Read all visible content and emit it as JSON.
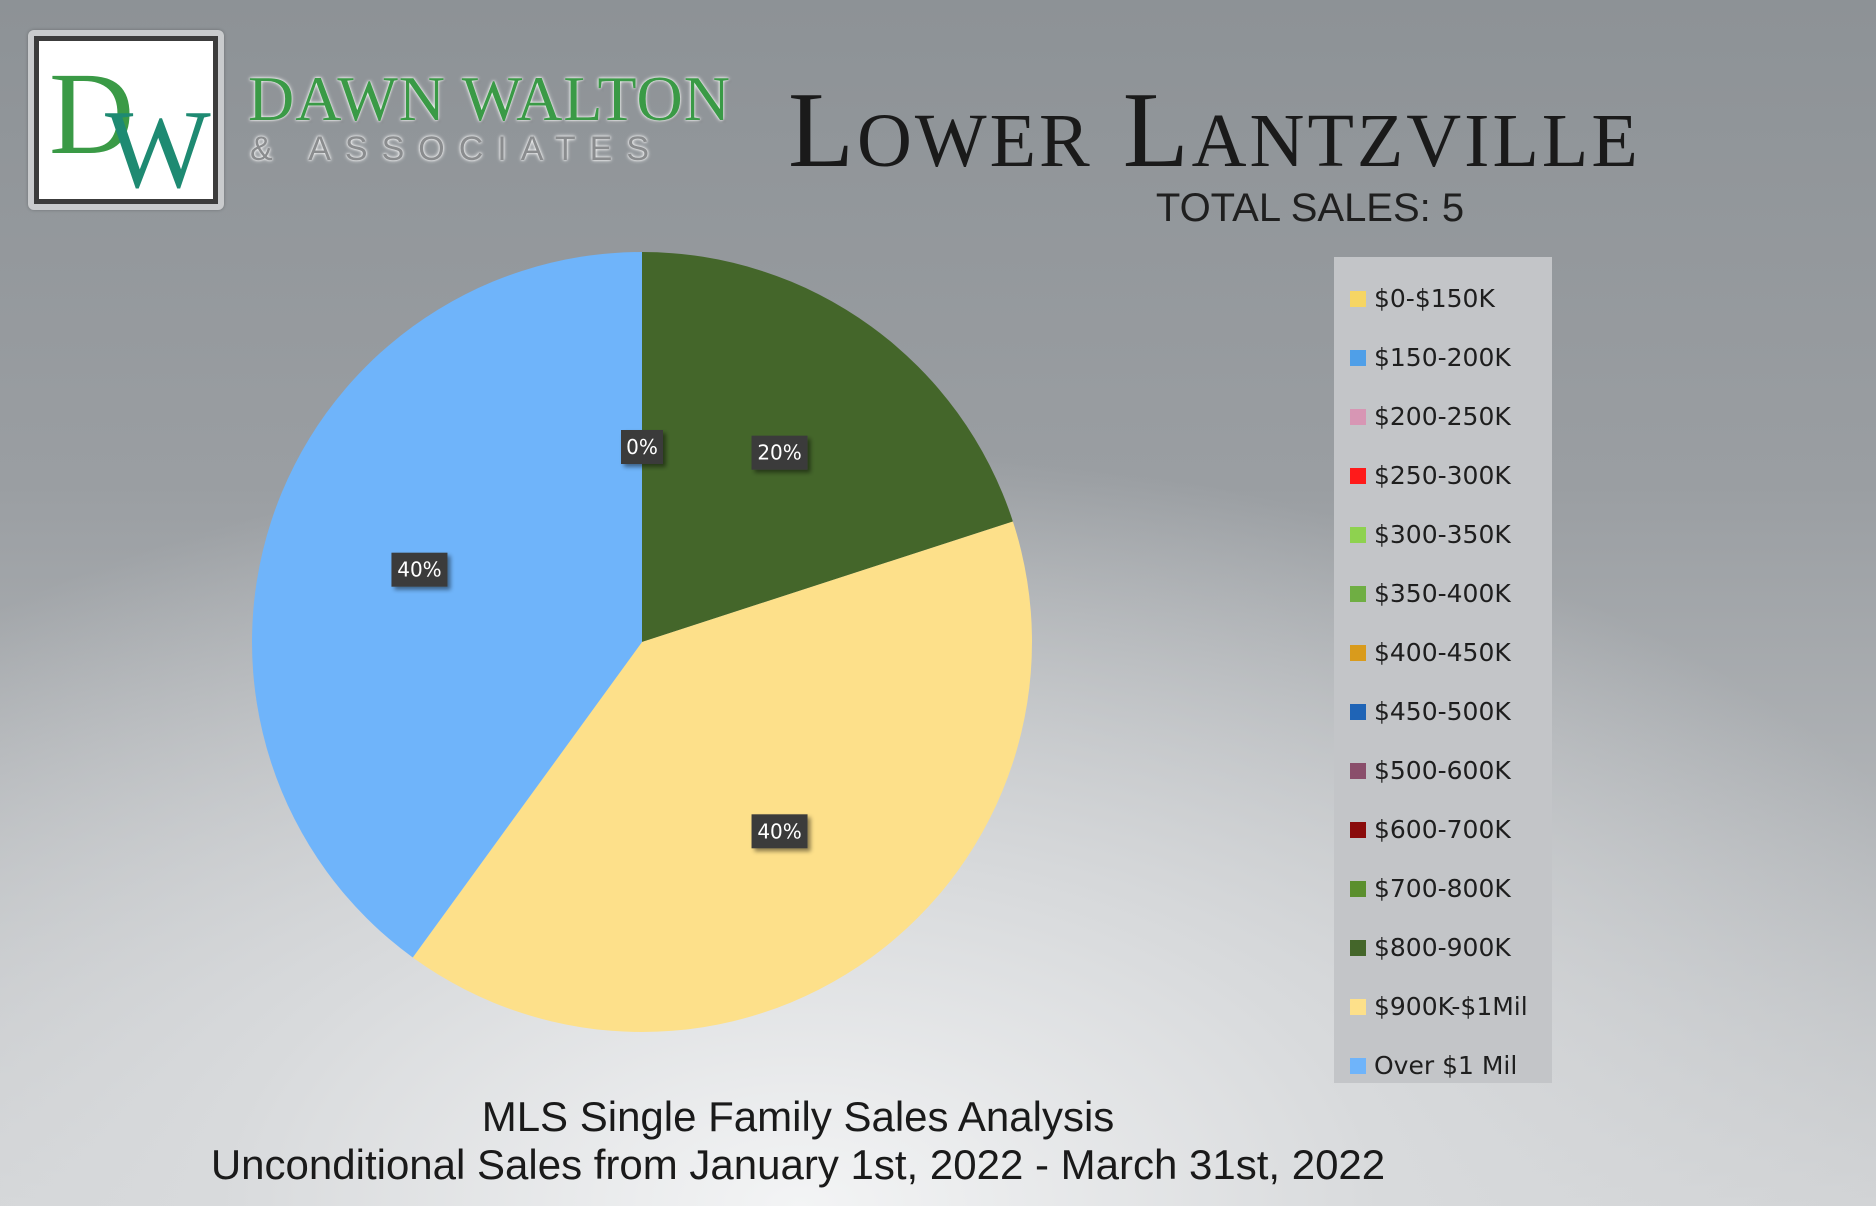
{
  "brand": {
    "logo_initials": "DW",
    "name": "DAWN WALTON",
    "subtitle": "& ASSOCIATES",
    "accent_green": "#3a9a46",
    "accent_teal": "#1e8a72"
  },
  "header": {
    "title": "Lower Lantzville",
    "total_sales": "TOTAL SALES: 5"
  },
  "chart_data": {
    "type": "pie",
    "categories": [
      "$0-$150K",
      "$150-200K",
      "$200-250K",
      "$250-300K",
      "$300-350K",
      "$350-400K",
      "$400-450K",
      "$450-500K",
      "$500-600K",
      "$600-700K",
      "$700-800K",
      "$800-900K",
      "$900K-$1Mil",
      "Over $1 Mil"
    ],
    "values": [
      0,
      0,
      0,
      0,
      0,
      0,
      0,
      0,
      0,
      0,
      0,
      20,
      40,
      40
    ],
    "colors": [
      "#f6d563",
      "#4f9fe8",
      "#d796b4",
      "#ff1a1a",
      "#8ed24f",
      "#6fae43",
      "#d99b1c",
      "#1f64b6",
      "#8a4e6b",
      "#8a0b0b",
      "#5b8f2e",
      "#44662a",
      "#fde08a",
      "#6fb4fa"
    ],
    "data_labels": [
      {
        "text": "0%",
        "category": "$0-$150K"
      },
      {
        "text": "20%",
        "category": "$800-900K"
      },
      {
        "text": "40%",
        "category": "$900K-$1Mil"
      },
      {
        "text": "40%",
        "category": "Over $1 Mil"
      }
    ],
    "legend_position": "right",
    "start_angle_deg": 0,
    "direction": "clockwise"
  },
  "footer": {
    "line1": "MLS Single Family Sales Analysis",
    "line2": "Unconditional Sales from January 1st, 2022 - March 31st, 2022"
  }
}
